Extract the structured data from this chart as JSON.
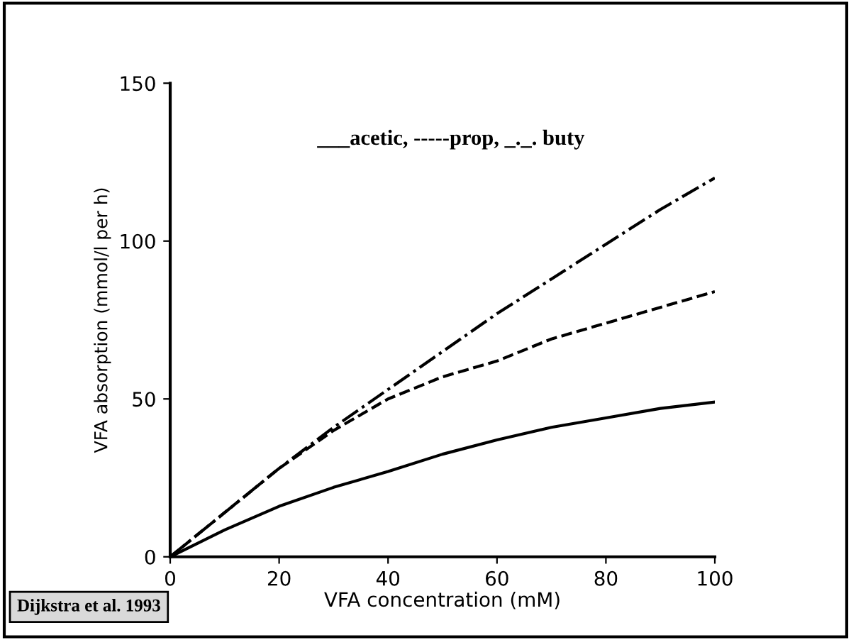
{
  "chart_data": {
    "type": "line",
    "xlabel": "VFA concentration (mM)",
    "ylabel": "VFA absorption (mmol/l per h)",
    "x": [
      0,
      10,
      20,
      30,
      40,
      50,
      60,
      70,
      80,
      90,
      100
    ],
    "series": [
      {
        "color": "#000000",
        "line_style": "solid",
        "values": [
          0,
          8.5,
          16,
          22,
          27,
          32.5,
          37,
          41,
          44,
          47,
          49
        ]
      },
      {
        "color": "#000000",
        "line_style": "dashed",
        "values": [
          0,
          14,
          28,
          40,
          50,
          57,
          62,
          69,
          74,
          79,
          84
        ]
      },
      {
        "color": "#000000",
        "line_style": "dashdot",
        "values": [
          0,
          14,
          28,
          41,
          53,
          65,
          77,
          88,
          99,
          110,
          120
        ]
      }
    ],
    "xlim": [
      0,
      100
    ],
    "ylim": [
      0,
      150
    ],
    "xticks": [
      0,
      20,
      40,
      60,
      80,
      100
    ],
    "yticks": [
      0,
      50,
      100,
      150
    ],
    "grid": false,
    "legend": false,
    "marker": "none",
    "annotations": [
      "___acetic, -----prop, _._. buty",
      "Dijkstra et al. 1993"
    ]
  }
}
